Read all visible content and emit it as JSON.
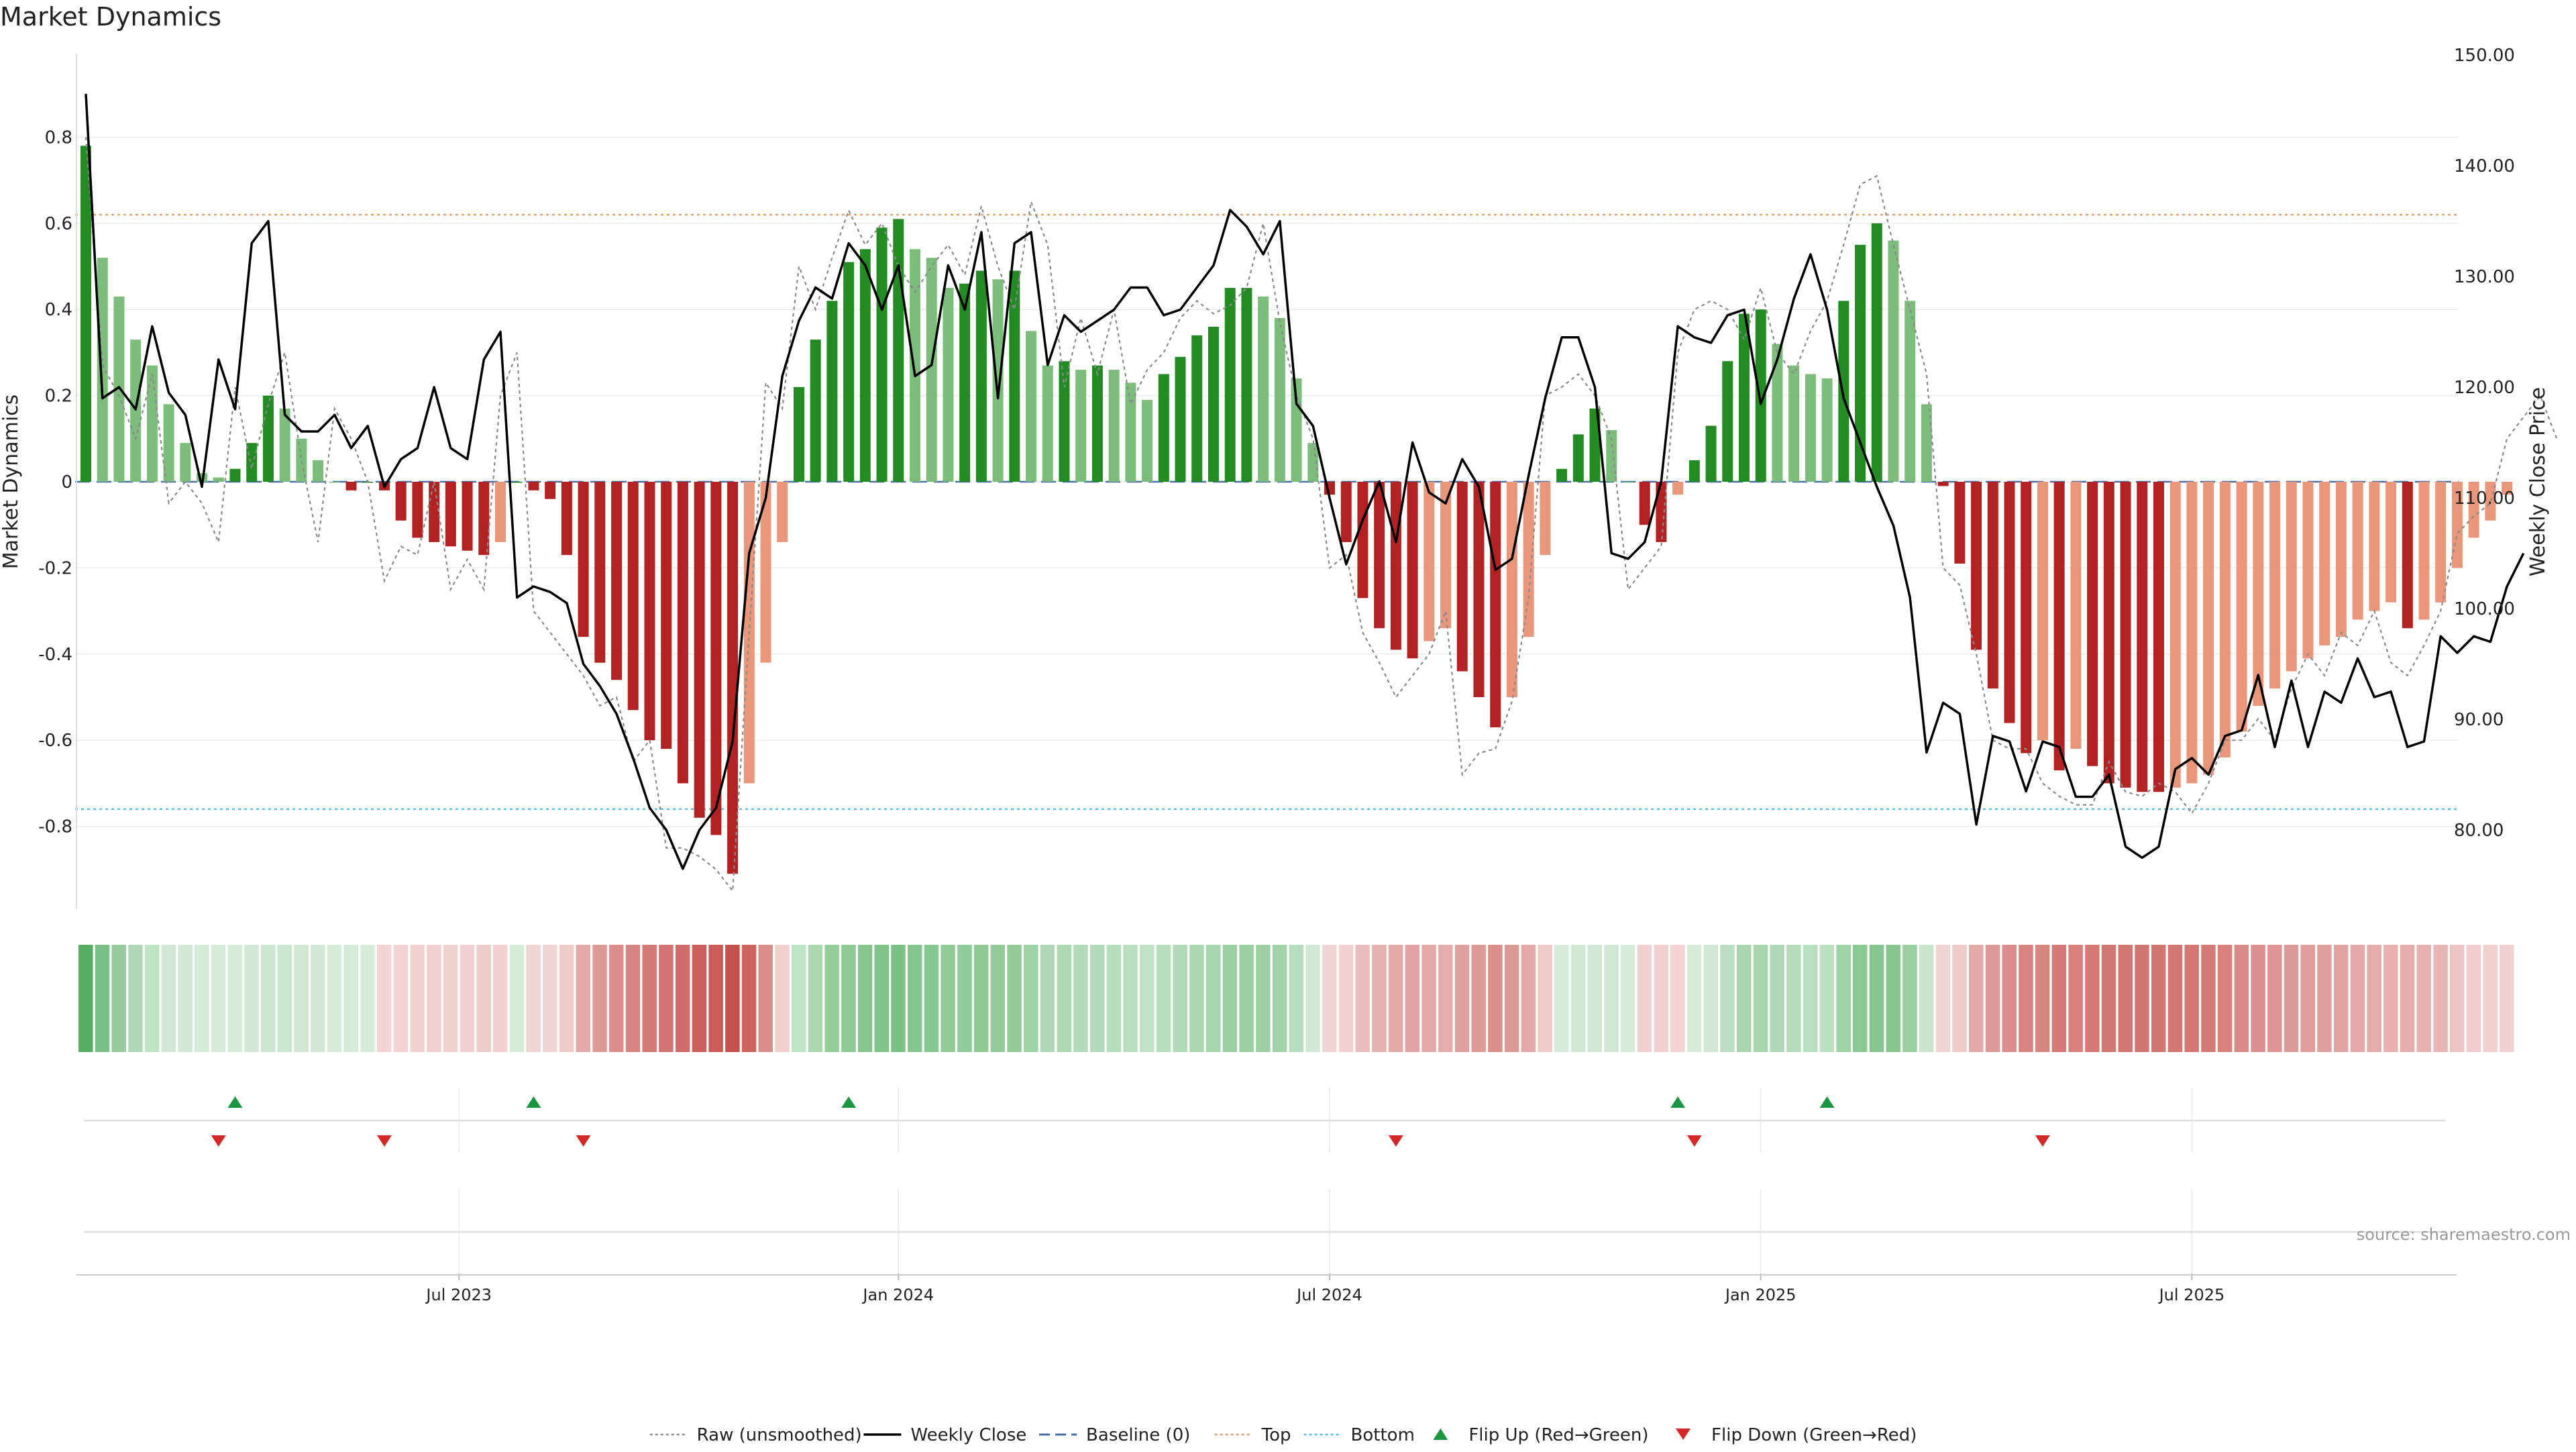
{
  "title": "Market Dynamics",
  "source": "source: sharemaestro.com",
  "colors": {
    "strong_green": "#228b22",
    "light_green": "#7cbd7c",
    "strong_red": "#b22222",
    "light_red": "#e9967a",
    "top_line": "#e0a070",
    "bottom_line": "#5bc0de",
    "baseline": "#4a6fa5",
    "raw_line": "#8a8a8a",
    "close_line": "#000000",
    "flip_up": "#1a9641",
    "flip_down": "#d62728"
  },
  "chart_data": {
    "type": "bar",
    "y_axis_left": {
      "label": "Market Dynamics",
      "range": [
        -0.98,
        0.99
      ],
      "ticks": [
        -0.8,
        -0.6,
        -0.4,
        -0.2,
        0,
        0.2,
        0.4,
        0.6,
        0.8
      ]
    },
    "y_axis_right": {
      "label": "Weekly Close Price",
      "range": [
        73,
        150
      ],
      "ticks": [
        "80.00",
        "90.00",
        "100.00",
        "110.00",
        "120.00",
        "130.00",
        "140.00",
        "150.00"
      ]
    },
    "x_axis": {
      "ticks": [
        {
          "label": "Jul 2023",
          "index": 22.5
        },
        {
          "label": "Jan 2024",
          "index": 49
        },
        {
          "label": "Jul 2024",
          "index": 75
        },
        {
          "label": "Jan 2025",
          "index": 101
        },
        {
          "label": "Jul 2025",
          "index": 127
        }
      ]
    },
    "top_threshold": 0.62,
    "bottom_threshold": -0.76,
    "baseline": 0,
    "bars": [
      0.78,
      0.52,
      0.43,
      0.33,
      0.27,
      0.18,
      0.09,
      0.02,
      0.01,
      0.03,
      0.09,
      0.2,
      0.17,
      0.1,
      0.05,
      0.0,
      -0.02,
      0.0,
      -0.02,
      -0.09,
      -0.13,
      -0.14,
      -0.15,
      -0.16,
      -0.17,
      -0.14,
      0.0,
      -0.02,
      -0.04,
      -0.17,
      -0.36,
      -0.42,
      -0.46,
      -0.53,
      -0.6,
      -0.62,
      -0.7,
      -0.78,
      -0.82,
      -0.91,
      -0.7,
      -0.42,
      -0.14,
      0.22,
      0.33,
      0.42,
      0.51,
      0.54,
      0.59,
      0.61,
      0.54,
      0.52,
      0.45,
      0.46,
      0.49,
      0.47,
      0.49,
      0.35,
      0.27,
      0.28,
      0.26,
      0.27,
      0.26,
      0.23,
      0.19,
      0.25,
      0.29,
      0.34,
      0.36,
      0.45,
      0.45,
      0.43,
      0.38,
      0.24,
      0.09,
      -0.03,
      -0.14,
      -0.27,
      -0.34,
      -0.39,
      -0.41,
      -0.37,
      -0.34,
      -0.44,
      -0.5,
      -0.57,
      -0.5,
      -0.36,
      -0.17,
      0.03,
      0.11,
      0.17,
      0.12,
      0.0,
      -0.1,
      -0.14,
      -0.03,
      0.05,
      0.13,
      0.28,
      0.39,
      0.4,
      0.32,
      0.27,
      0.25,
      0.24,
      0.42,
      0.55,
      0.6,
      0.56,
      0.42,
      0.18,
      -0.01,
      -0.19,
      -0.39,
      -0.48,
      -0.56,
      -0.63,
      -0.6,
      -0.67,
      -0.62,
      -0.66,
      -0.7,
      -0.71,
      -0.72,
      -0.72,
      -0.71,
      -0.7,
      -0.68,
      -0.64,
      -0.58,
      -0.52,
      -0.48,
      -0.44,
      -0.41,
      -0.38,
      -0.36,
      -0.32,
      -0.3,
      -0.28,
      -0.34,
      -0.32,
      -0.28,
      -0.2,
      -0.13,
      -0.09,
      -0.03
    ],
    "raw": [
      0.8,
      0.27,
      0.2,
      0.1,
      0.25,
      -0.05,
      0.0,
      -0.05,
      -0.14,
      0.22,
      0.03,
      0.18,
      0.3,
      0.05,
      -0.14,
      0.17,
      0.1,
      0.0,
      -0.23,
      -0.15,
      -0.17,
      0.0,
      -0.25,
      -0.18,
      -0.25,
      0.2,
      0.3,
      -0.3,
      -0.35,
      -0.4,
      -0.45,
      -0.52,
      -0.5,
      -0.65,
      -0.6,
      -0.85,
      -0.85,
      -0.87,
      -0.9,
      -0.95,
      -0.35,
      0.23,
      0.17,
      0.5,
      0.4,
      0.52,
      0.63,
      0.55,
      0.6,
      0.5,
      0.44,
      0.5,
      0.55,
      0.48,
      0.64,
      0.5,
      0.4,
      0.65,
      0.55,
      0.22,
      0.38,
      0.25,
      0.4,
      0.18,
      0.26,
      0.3,
      0.38,
      0.42,
      0.39,
      0.41,
      0.45,
      0.6,
      0.37,
      0.2,
      0.1,
      -0.2,
      -0.17,
      -0.35,
      -0.42,
      -0.5,
      -0.45,
      -0.4,
      -0.3,
      -0.68,
      -0.63,
      -0.62,
      -0.51,
      -0.27,
      0.2,
      0.22,
      0.25,
      0.2,
      0.1,
      -0.25,
      -0.2,
      -0.15,
      0.3,
      0.4,
      0.42,
      0.4,
      0.33,
      0.45,
      0.3,
      0.25,
      0.35,
      0.42,
      0.55,
      0.69,
      0.71,
      0.55,
      0.4,
      0.25,
      -0.2,
      -0.24,
      -0.4,
      -0.6,
      -0.62,
      -0.62,
      -0.7,
      -0.73,
      -0.75,
      -0.75,
      -0.65,
      -0.72,
      -0.73,
      -0.7,
      -0.72,
      -0.77,
      -0.7,
      -0.6,
      -0.6,
      -0.55,
      -0.6,
      -0.48,
      -0.4,
      -0.45,
      -0.35,
      -0.38,
      -0.3,
      -0.42,
      -0.45,
      -0.38,
      -0.3,
      -0.12,
      -0.08,
      -0.05,
      0.1,
      0.15,
      0.2,
      0.1
    ],
    "weekly_close": [
      146.5,
      119,
      120,
      118,
      125.5,
      119.5,
      117.5,
      111,
      122.5,
      118,
      133,
      135,
      117.5,
      116,
      116,
      117.5,
      114.5,
      116.5,
      111,
      113.5,
      114.5,
      120,
      114.5,
      113.5,
      122.5,
      125,
      101,
      102,
      101.5,
      100.5,
      95,
      93,
      90.5,
      86.5,
      82,
      80,
      76.5,
      80,
      82,
      88,
      105,
      110,
      121,
      126,
      129,
      128,
      133,
      131,
      127,
      131,
      121,
      122,
      131,
      127,
      134,
      119,
      133,
      134,
      122,
      126.5,
      125,
      126,
      127,
      129,
      129,
      126.5,
      127,
      129,
      131,
      136,
      134.5,
      132,
      135,
      118.5,
      116.5,
      110,
      104,
      108,
      111.5,
      106,
      115,
      110.5,
      109.5,
      113.5,
      111,
      103.5,
      104.5,
      112,
      119,
      124.5,
      124.5,
      120,
      105,
      104.5,
      106,
      111.5,
      125.5,
      124.5,
      124,
      126.5,
      127,
      118.5,
      122.5,
      128,
      132,
      127,
      119,
      115,
      111,
      107.5,
      101,
      87,
      91.5,
      90.5,
      80.5,
      88.5,
      88,
      83.5,
      88,
      87.5,
      83,
      83,
      85,
      78.5,
      77.5,
      78.5,
      85.5,
      86.5,
      85,
      88.5,
      89,
      94,
      87.5,
      93.5,
      87.5,
      92.5,
      91.5,
      95.5,
      92,
      92.5,
      87.5,
      88,
      97.5,
      96,
      97.5,
      97,
      102,
      105
    ],
    "heat_strip": [
      0.8,
      0.63,
      0.5,
      0.38,
      0.3,
      0.22,
      0.15,
      0.1,
      0.08,
      0.1,
      0.15,
      0.25,
      0.25,
      0.2,
      0.15,
      0.1,
      0.05,
      0.0,
      -0.05,
      -0.1,
      -0.15,
      -0.18,
      -0.2,
      -0.22,
      -0.25,
      -0.2,
      0.0,
      -0.05,
      -0.1,
      -0.25,
      -0.42,
      -0.5,
      -0.55,
      -0.6,
      -0.65,
      -0.68,
      -0.72,
      -0.78,
      -0.8,
      -0.85,
      -0.75,
      -0.55,
      -0.2,
      0.3,
      0.4,
      0.5,
      0.55,
      0.58,
      0.6,
      0.62,
      0.58,
      0.56,
      0.52,
      0.52,
      0.53,
      0.52,
      0.52,
      0.45,
      0.38,
      0.38,
      0.36,
      0.36,
      0.35,
      0.32,
      0.3,
      0.34,
      0.37,
      0.4,
      0.42,
      0.48,
      0.48,
      0.47,
      0.44,
      0.34,
      0.2,
      -0.1,
      -0.2,
      -0.32,
      -0.38,
      -0.42,
      -0.44,
      -0.42,
      -0.4,
      -0.46,
      -0.5,
      -0.55,
      -0.5,
      -0.42,
      -0.26,
      0.08,
      0.15,
      0.22,
      0.18,
      0.05,
      -0.15,
      -0.2,
      -0.08,
      0.1,
      0.18,
      0.32,
      0.42,
      0.42,
      0.38,
      0.35,
      0.33,
      0.32,
      0.45,
      0.55,
      0.58,
      0.56,
      0.47,
      0.26,
      -0.05,
      -0.25,
      -0.42,
      -0.5,
      -0.56,
      -0.6,
      -0.6,
      -0.64,
      -0.62,
      -0.64,
      -0.66,
      -0.66,
      -0.67,
      -0.67,
      -0.66,
      -0.66,
      -0.64,
      -0.62,
      -0.58,
      -0.54,
      -0.52,
      -0.5,
      -0.48,
      -0.46,
      -0.44,
      -0.42,
      -0.4,
      -0.38,
      -0.4,
      -0.38,
      -0.36,
      -0.3,
      -0.24,
      -0.2,
      -0.14
    ],
    "flip_up_indices": [
      9,
      27,
      46,
      96,
      105
    ],
    "flip_down_indices": [
      8,
      18,
      30,
      79,
      97,
      118
    ]
  },
  "legend": [
    {
      "label": "Raw (unsmoothed)",
      "kind": "dotted",
      "color_key": "raw_line"
    },
    {
      "label": "Weekly Close",
      "kind": "solid",
      "color_key": "close_line"
    },
    {
      "label": "Baseline (0)",
      "kind": "dashed",
      "color_key": "baseline"
    },
    {
      "label": "Top",
      "kind": "dotted",
      "color_key": "top_line"
    },
    {
      "label": "Bottom",
      "kind": "dotted",
      "color_key": "bottom_line"
    },
    {
      "label": "Flip Up (Red→Green)",
      "kind": "up-marker",
      "color_key": "flip_up"
    },
    {
      "label": "Flip Down (Green→Red)",
      "kind": "down-marker",
      "color_key": "flip_down"
    }
  ]
}
